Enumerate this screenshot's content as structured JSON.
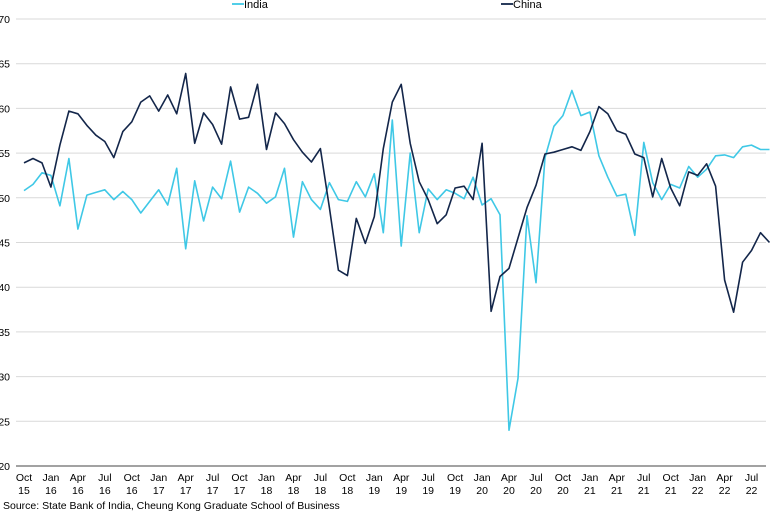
{
  "chart_data": {
    "type": "line",
    "x": [
      "Oct 15",
      "Nov 15",
      "Dec 15",
      "Jan 16",
      "Feb 16",
      "Mar 16",
      "Apr 16",
      "May 16",
      "Jun 16",
      "Jul 16",
      "Aug 16",
      "Sep 16",
      "Oct 16",
      "Nov 16",
      "Dec 16",
      "Jan 17",
      "Feb 17",
      "Mar 17",
      "Apr 17",
      "May 17",
      "Jun 17",
      "Jul 17",
      "Aug 17",
      "Sep 17",
      "Oct 17",
      "Nov 17",
      "Dec 17",
      "Jan 18",
      "Feb 18",
      "Mar 18",
      "Apr 18",
      "May 18",
      "Jun 18",
      "Jul 18",
      "Aug 18",
      "Sep 18",
      "Oct 18",
      "Nov 18",
      "Dec 18",
      "Jan 19",
      "Feb 19",
      "Mar 19",
      "Apr 19",
      "May 19",
      "Jun 19",
      "Jul 19",
      "Aug 19",
      "Sep 19",
      "Oct 19",
      "Nov 19",
      "Dec 19",
      "Jan 20",
      "Feb 20",
      "Mar 20",
      "Apr 20",
      "May 20",
      "Jun 20",
      "Jul 20",
      "Aug 20",
      "Sep 20",
      "Oct 20",
      "Nov 20",
      "Dec 20",
      "Jan 21",
      "Feb 21",
      "Mar 21",
      "Apr 21",
      "May 21",
      "Jun 21",
      "Jul 21",
      "Aug 21",
      "Sep 21",
      "Oct 21",
      "Nov 21",
      "Dec 21",
      "Jan 22",
      "Feb 22",
      "Mar 22",
      "Apr 22",
      "May 22",
      "Jun 22",
      "Jul 22",
      "Aug 22",
      "Sep 22"
    ],
    "x_tick_labels": [
      {
        "month": "Oct",
        "year": "15"
      },
      {
        "month": "Jan",
        "year": "16"
      },
      {
        "month": "Apr",
        "year": "16"
      },
      {
        "month": "Jul",
        "year": "16"
      },
      {
        "month": "Oct",
        "year": "16"
      },
      {
        "month": "Jan",
        "year": "17"
      },
      {
        "month": "Apr",
        "year": "17"
      },
      {
        "month": "Jul",
        "year": "17"
      },
      {
        "month": "Oct",
        "year": "17"
      },
      {
        "month": "Jan",
        "year": "18"
      },
      {
        "month": "Apr",
        "year": "18"
      },
      {
        "month": "Jul",
        "year": "18"
      },
      {
        "month": "Oct",
        "year": "18"
      },
      {
        "month": "Jan",
        "year": "19"
      },
      {
        "month": "Apr",
        "year": "19"
      },
      {
        "month": "Jul",
        "year": "19"
      },
      {
        "month": "Oct",
        "year": "19"
      },
      {
        "month": "Jan",
        "year": "20"
      },
      {
        "month": "Apr",
        "year": "20"
      },
      {
        "month": "Jul",
        "year": "20"
      },
      {
        "month": "Oct",
        "year": "20"
      },
      {
        "month": "Jan",
        "year": "21"
      },
      {
        "month": "Apr",
        "year": "21"
      },
      {
        "month": "Jul",
        "year": "21"
      },
      {
        "month": "Oct",
        "year": "21"
      },
      {
        "month": "Jan",
        "year": "22"
      },
      {
        "month": "Apr",
        "year": "22"
      },
      {
        "month": "Jul",
        "year": "22"
      }
    ],
    "y_ticks": [
      20,
      25,
      30,
      35,
      40,
      45,
      50,
      55,
      60,
      65,
      70
    ],
    "ylim": [
      20,
      70
    ],
    "grid": "horizontal",
    "legend_position": "top-center",
    "series": [
      {
        "name": "India",
        "color": "#3fc8e6",
        "values": [
          50.8,
          51.5,
          52.8,
          52.5,
          49.1,
          54.4,
          46.5,
          50.3,
          50.6,
          50.9,
          49.8,
          50.7,
          49.8,
          48.3,
          49.6,
          50.9,
          49.2,
          53.3,
          44.3,
          51.9,
          47.4,
          51.2,
          49.9,
          54.1,
          48.4,
          51.2,
          50.5,
          49.4,
          50.1,
          53.3,
          45.6,
          51.8,
          49.8,
          48.7,
          51.7,
          49.8,
          49.6,
          51.8,
          50.1,
          52.7,
          46.1,
          58.7,
          44.6,
          55.0,
          46.1,
          51.0,
          49.8,
          50.9,
          50.5,
          49.9,
          52.3,
          49.2,
          49.9,
          48.1,
          24.0,
          29.8,
          48.0,
          40.5,
          54.5,
          58.0,
          59.2,
          62.0,
          59.2,
          59.6,
          54.7,
          52.3,
          50.2,
          50.4,
          45.8,
          56.2,
          51.7,
          49.8,
          51.5,
          51.1,
          53.5,
          52.3,
          53.2,
          54.7,
          54.8,
          54.5,
          55.7,
          55.9,
          55.4,
          55.4
        ]
      },
      {
        "name": "China",
        "color": "#13264a",
        "values": [
          53.9,
          54.4,
          53.9,
          51.2,
          55.9,
          59.7,
          59.4,
          58.1,
          57.0,
          56.3,
          54.5,
          57.4,
          58.5,
          60.7,
          61.4,
          59.7,
          61.5,
          59.4,
          63.9,
          56.1,
          59.5,
          58.2,
          56.0,
          62.4,
          58.8,
          59.0,
          62.7,
          55.4,
          59.5,
          58.3,
          56.5,
          55.1,
          54.0,
          55.5,
          48.9,
          41.9,
          41.3,
          47.7,
          44.9,
          47.9,
          55.5,
          60.7,
          62.7,
          56.1,
          51.8,
          49.8,
          47.1,
          48.1,
          51.1,
          51.3,
          49.8,
          56.1,
          37.3,
          41.2,
          42.1,
          45.5,
          48.9,
          51.4,
          54.9,
          55.1,
          55.4,
          55.7,
          55.3,
          57.4,
          60.2,
          59.4,
          57.5,
          57.1,
          54.9,
          54.5,
          50.1,
          54.4,
          51.1,
          49.1,
          52.9,
          52.5,
          53.8,
          51.3,
          40.8,
          37.2,
          42.8,
          44.1,
          46.1,
          45.0
        ]
      }
    ]
  },
  "source_text": "Source: State Bank of India, Cheung Kong Graduate School of Business"
}
